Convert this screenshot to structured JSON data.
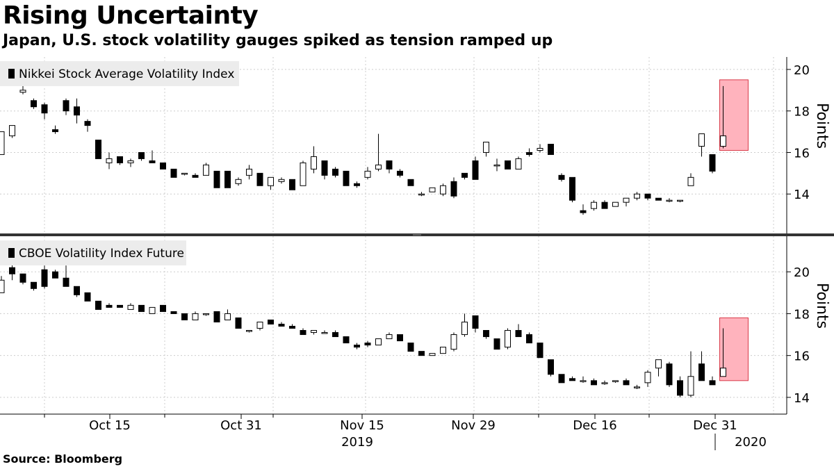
{
  "title": "Rising Uncertainty",
  "subtitle": "Japan, U.S. stock volatility gauges spiked as tension ramped up",
  "source": "Source: Bloomberg",
  "x_axis": {
    "ticks": [
      "Oct 15",
      "Oct 31",
      "Nov 15",
      "Nov 29",
      "Dec 16",
      "Dec 31"
    ],
    "years": [
      "2019",
      "2020"
    ]
  },
  "colors": {
    "up": "#ffffff",
    "down": "#000000",
    "highlight_fill": "#ffb3bd",
    "highlight_stroke": "#d93a49",
    "legend_bg": "#ececec",
    "grid": "#cccccc"
  },
  "chart_data": [
    {
      "type": "candlestick",
      "title": "Nikkei Stock Average Volatility Index",
      "legend": "Nikkei Stock Average Volatility Index",
      "ylabel": "Points",
      "ylim": [
        12.1,
        20.6
      ],
      "yticks": [
        14,
        16,
        18,
        20
      ],
      "highlight": {
        "from_index": 67,
        "to_index": 69,
        "ylim": [
          16.1,
          19.5
        ]
      },
      "candles": [
        [
          15.9,
          17.0,
          15.9,
          17.0
        ],
        [
          16.8,
          17.3,
          16.7,
          17.3
        ],
        [
          18.9,
          19.3,
          18.8,
          19.0
        ],
        [
          18.5,
          18.6,
          18.1,
          18.2
        ],
        [
          18.3,
          18.4,
          17.6,
          17.9
        ],
        [
          17.1,
          17.3,
          16.9,
          17.0
        ],
        [
          18.5,
          18.6,
          17.8,
          18.0
        ],
        [
          18.2,
          18.6,
          17.4,
          17.8
        ],
        [
          17.5,
          17.6,
          17.0,
          17.3
        ],
        [
          16.6,
          16.6,
          15.7,
          15.7
        ],
        [
          15.5,
          16.0,
          15.2,
          15.7
        ],
        [
          15.8,
          15.8,
          15.4,
          15.5
        ],
        [
          15.5,
          15.7,
          15.3,
          15.6
        ],
        [
          16.0,
          16.0,
          15.6,
          15.7
        ],
        [
          15.6,
          16.1,
          15.5,
          15.5
        ],
        [
          15.5,
          15.5,
          15.2,
          15.2
        ],
        [
          15.2,
          15.2,
          14.8,
          14.8
        ],
        [
          15.0,
          15.0,
          14.9,
          15.0
        ],
        [
          14.9,
          15.0,
          14.8,
          14.8
        ],
        [
          14.9,
          15.5,
          14.9,
          15.4
        ],
        [
          15.1,
          15.1,
          14.3,
          14.3
        ],
        [
          15.1,
          15.1,
          14.3,
          14.3
        ],
        [
          14.5,
          14.8,
          14.4,
          14.7
        ],
        [
          14.9,
          15.4,
          14.7,
          15.2
        ],
        [
          15.0,
          15.0,
          14.4,
          14.4
        ],
        [
          14.4,
          14.8,
          14.2,
          14.8
        ],
        [
          14.6,
          14.8,
          14.5,
          14.7
        ],
        [
          14.7,
          14.7,
          14.2,
          14.2
        ],
        [
          14.4,
          15.6,
          14.4,
          15.5
        ],
        [
          15.2,
          16.3,
          15.0,
          15.8
        ],
        [
          15.6,
          15.6,
          14.7,
          14.9
        ],
        [
          15.2,
          15.3,
          14.8,
          14.9
        ],
        [
          15.1,
          15.1,
          14.4,
          14.4
        ],
        [
          14.5,
          14.6,
          14.3,
          14.4
        ],
        [
          14.8,
          15.3,
          14.7,
          15.1
        ],
        [
          15.2,
          16.9,
          15.1,
          15.4
        ],
        [
          15.6,
          15.6,
          15.0,
          15.2
        ],
        [
          15.1,
          15.2,
          14.8,
          14.9
        ],
        [
          14.7,
          14.7,
          14.4,
          14.4
        ],
        [
          14.0,
          14.1,
          13.9,
          14.0
        ],
        [
          14.1,
          14.3,
          14.1,
          14.3
        ],
        [
          14.0,
          14.5,
          13.9,
          14.4
        ],
        [
          14.6,
          14.8,
          13.8,
          13.9
        ],
        [
          15.0,
          15.0,
          14.7,
          14.8
        ],
        [
          15.6,
          15.8,
          14.7,
          14.7
        ],
        [
          16.0,
          16.5,
          15.8,
          16.5
        ],
        [
          15.4,
          15.7,
          15.1,
          15.4
        ],
        [
          15.6,
          15.6,
          15.2,
          15.2
        ],
        [
          15.2,
          15.8,
          15.2,
          15.7
        ],
        [
          16.0,
          16.2,
          15.8,
          15.9
        ],
        [
          16.1,
          16.4,
          16.0,
          16.2
        ],
        [
          16.4,
          16.4,
          15.9,
          15.9
        ],
        [
          14.9,
          15.0,
          14.6,
          14.7
        ],
        [
          14.8,
          14.8,
          13.6,
          13.7
        ],
        [
          13.2,
          13.5,
          13.0,
          13.1
        ],
        [
          13.3,
          13.7,
          13.2,
          13.6
        ],
        [
          13.6,
          13.7,
          13.3,
          13.3
        ],
        [
          13.4,
          13.6,
          13.4,
          13.6
        ],
        [
          13.6,
          13.8,
          13.4,
          13.8
        ],
        [
          13.8,
          14.1,
          13.7,
          14.0
        ],
        [
          14.0,
          14.0,
          13.7,
          13.8
        ],
        [
          13.8,
          13.8,
          13.7,
          13.7
        ],
        [
          13.7,
          13.8,
          13.6,
          13.7
        ],
        [
          13.7,
          13.7,
          13.6,
          13.7
        ],
        [
          14.4,
          15.0,
          14.4,
          14.8
        ],
        [
          16.3,
          16.9,
          15.8,
          16.9
        ],
        [
          15.9,
          15.9,
          15.0,
          15.1
        ],
        [
          16.3,
          19.2,
          16.2,
          16.8
        ]
      ],
      "candle_index_offset": 0
    },
    {
      "type": "candlestick",
      "title": "CBOE Volatility Index Future",
      "legend": "CBOE Volatility Index Future",
      "ylabel": "Points",
      "ylim": [
        13.2,
        21.7
      ],
      "yticks": [
        14,
        16,
        18,
        20
      ],
      "highlight": {
        "from_index": 67,
        "to_index": 69,
        "ylim": [
          14.8,
          17.8
        ]
      },
      "candles": [
        [
          19.0,
          19.8,
          19.0,
          19.6
        ],
        [
          20.2,
          20.5,
          19.6,
          19.9
        ],
        [
          19.9,
          19.9,
          19.4,
          19.5
        ],
        [
          19.5,
          19.5,
          19.1,
          19.2
        ],
        [
          20.1,
          20.3,
          19.2,
          19.3
        ],
        [
          20.0,
          20.1,
          19.7,
          19.7
        ],
        [
          19.7,
          20.3,
          19.3,
          19.3
        ],
        [
          19.3,
          19.3,
          18.8,
          18.9
        ],
        [
          19.0,
          19.0,
          18.6,
          18.6
        ],
        [
          18.6,
          18.6,
          18.2,
          18.2
        ],
        [
          18.4,
          18.5,
          18.3,
          18.3
        ],
        [
          18.4,
          18.4,
          18.3,
          18.3
        ],
        [
          18.2,
          18.5,
          18.2,
          18.4
        ],
        [
          18.4,
          18.4,
          18.1,
          18.1
        ],
        [
          18.0,
          18.3,
          18.0,
          18.3
        ],
        [
          18.4,
          18.4,
          18.1,
          18.1
        ],
        [
          18.1,
          18.1,
          18.0,
          18.0
        ],
        [
          18.0,
          18.0,
          17.7,
          17.7
        ],
        [
          17.7,
          18.1,
          17.7,
          18.0
        ],
        [
          18.0,
          18.0,
          17.9,
          18.0
        ],
        [
          18.1,
          18.1,
          17.6,
          17.6
        ],
        [
          17.7,
          18.2,
          17.7,
          18.0
        ],
        [
          17.8,
          17.8,
          17.3,
          17.3
        ],
        [
          17.2,
          17.2,
          17.1,
          17.2
        ],
        [
          17.3,
          17.6,
          17.2,
          17.6
        ],
        [
          17.7,
          17.7,
          17.5,
          17.5
        ],
        [
          17.5,
          17.6,
          17.4,
          17.4
        ],
        [
          17.4,
          17.5,
          17.3,
          17.3
        ],
        [
          17.2,
          17.3,
          17.0,
          17.0
        ],
        [
          17.1,
          17.2,
          17.0,
          17.2
        ],
        [
          17.1,
          17.2,
          17.1,
          17.1
        ],
        [
          17.1,
          17.2,
          16.9,
          16.9
        ],
        [
          16.9,
          16.9,
          16.6,
          16.6
        ],
        [
          16.5,
          16.6,
          16.3,
          16.4
        ],
        [
          16.6,
          16.7,
          16.4,
          16.5
        ],
        [
          16.5,
          16.8,
          16.5,
          16.8
        ],
        [
          16.8,
          17.1,
          16.8,
          17.0
        ],
        [
          17.0,
          17.0,
          16.7,
          16.7
        ],
        [
          16.6,
          16.6,
          16.2,
          16.2
        ],
        [
          16.2,
          16.2,
          16.0,
          16.0
        ],
        [
          16.0,
          16.1,
          16.0,
          16.1
        ],
        [
          16.1,
          16.4,
          16.1,
          16.4
        ],
        [
          16.3,
          17.1,
          16.2,
          17.0
        ],
        [
          17.0,
          18.0,
          16.9,
          17.6
        ],
        [
          17.9,
          17.9,
          17.1,
          17.3
        ],
        [
          17.2,
          17.2,
          16.8,
          16.9
        ],
        [
          16.8,
          16.8,
          16.3,
          16.3
        ],
        [
          16.4,
          17.3,
          16.3,
          17.2
        ],
        [
          17.2,
          17.5,
          16.9,
          16.9
        ],
        [
          17.0,
          17.1,
          16.6,
          16.6
        ],
        [
          16.6,
          16.6,
          15.9,
          15.9
        ],
        [
          15.8,
          15.8,
          15.0,
          15.1
        ],
        [
          15.1,
          15.1,
          14.7,
          14.7
        ],
        [
          14.9,
          15.0,
          14.8,
          14.8
        ],
        [
          14.8,
          15.0,
          14.7,
          14.8
        ],
        [
          14.8,
          14.9,
          14.6,
          14.6
        ],
        [
          14.7,
          14.8,
          14.6,
          14.7
        ],
        [
          14.8,
          14.8,
          14.7,
          14.8
        ],
        [
          14.8,
          14.9,
          14.6,
          14.6
        ],
        [
          14.5,
          14.6,
          14.4,
          14.5
        ],
        [
          14.7,
          15.3,
          14.5,
          15.2
        ],
        [
          15.4,
          15.8,
          15.0,
          15.8
        ],
        [
          15.6,
          15.7,
          14.5,
          14.6
        ],
        [
          14.8,
          15.0,
          14.0,
          14.1
        ],
        [
          14.1,
          16.2,
          14.0,
          15.0
        ],
        [
          15.6,
          16.2,
          14.8,
          14.8
        ],
        [
          14.8,
          15.0,
          14.6,
          14.6
        ],
        [
          15.0,
          17.3,
          15.0,
          15.4
        ]
      ],
      "candle_index_offset": 0
    }
  ]
}
